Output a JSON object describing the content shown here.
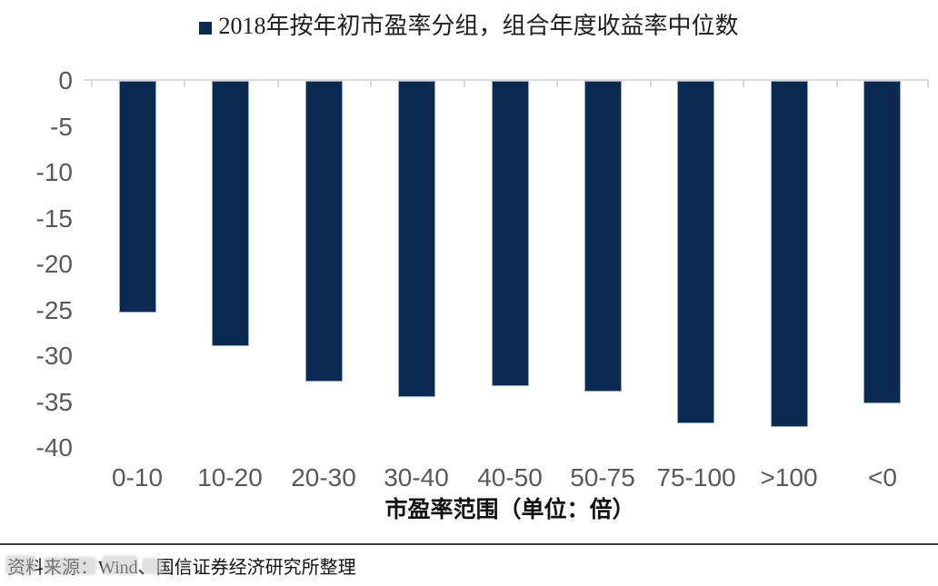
{
  "title": {
    "text": "2018年按年初市盈率分组，组合年度收益率中位数"
  },
  "chart_data": {
    "type": "bar",
    "title": "2018年按年初市盈率分组，组合年度收益率中位数",
    "categories": [
      "0-10",
      "10-20",
      "20-30",
      "30-40",
      "40-50",
      "50-75",
      "75-100",
      ">100",
      "<0"
    ],
    "values": [
      -25.2,
      -28.9,
      -32.8,
      -34.5,
      -33.3,
      -33.9,
      -37.3,
      -37.7,
      -35.1
    ],
    "xlabel": "市盈率范围（单位：倍）",
    "ylabel": "",
    "ylim": [
      -40,
      0
    ],
    "y_ticks": [
      0,
      -5,
      -10,
      -15,
      -20,
      -25,
      -30,
      -35,
      -40
    ],
    "grid": false,
    "legend_position": "top",
    "bar_color": "#0b2a52",
    "bar_border_color": "#92a5bf",
    "axis_line_color": "#d9d9d9",
    "tick_label_color": "#595959"
  },
  "source": {
    "text": "资料来源：Wind、国信证券经济研究所整理"
  }
}
